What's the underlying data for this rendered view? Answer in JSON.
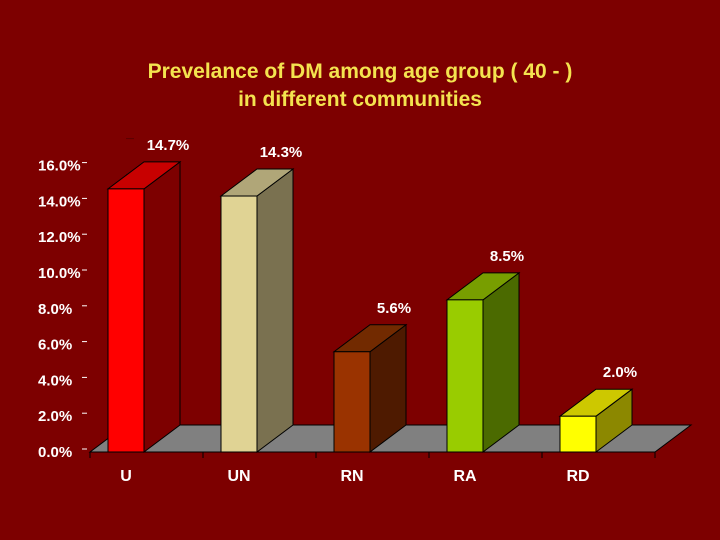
{
  "title": {
    "line1": "Prevelance of DM among age group ( 40 - )",
    "line2": "in different communities"
  },
  "chart_data": {
    "type": "bar",
    "title": "Prevelance of DM among age group ( 40 - ) in different communities",
    "categories": [
      "U",
      "UN",
      "RN",
      "RA",
      "RD"
    ],
    "values": [
      14.7,
      14.3,
      5.6,
      8.5,
      2.0
    ],
    "data_labels": [
      "14.7%",
      "14.3%",
      "5.6%",
      "8.5%",
      "2.0%"
    ],
    "ylim": [
      0,
      16
    ],
    "yticks": [
      "0.0%",
      "2.0%",
      "4.0%",
      "6.0%",
      "8.0%",
      "10.0%",
      "12.0%",
      "14.0%",
      "16.0%"
    ],
    "xlabel": "",
    "ylabel": "",
    "style": "3d-column",
    "colors": {
      "front": [
        "#ff0000",
        "#e0d394",
        "#9a3300",
        "#99cc00",
        "#ffff00"
      ],
      "side": [
        "#7d0000",
        "#7a7150",
        "#4e1a00",
        "#4b6a00",
        "#8c8800"
      ],
      "top": [
        "#c80000",
        "#b0a678",
        "#722a00",
        "#789e00",
        "#cdc800"
      ]
    },
    "floor_color": "#808080"
  }
}
